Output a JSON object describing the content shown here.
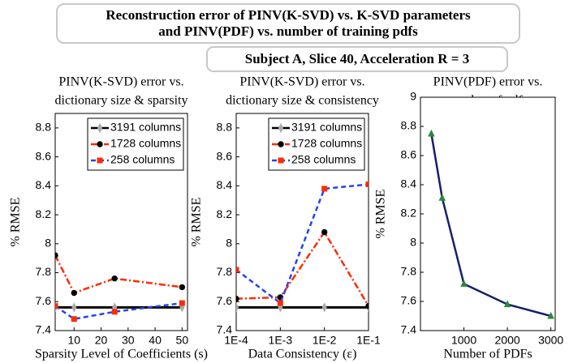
{
  "header": {
    "title": [
      "Reconstruction error of PINV(K-SVD) vs. K-SVD parameters",
      "and PINV(PDF) vs. number of training pdfs"
    ],
    "subtitle": "Subject A, Slice 40, Acceleration R = 3"
  },
  "chart_data": [
    {
      "type": "line",
      "title": [
        "PINV(K-SVD) error vs.",
        "dictionary size & sparsity"
      ],
      "x_label": "Sparsity Level of Coefficients (s)",
      "y_label": "% RMSE",
      "x": [
        3,
        10,
        25,
        50
      ],
      "xlim": [
        3,
        52
      ],
      "xticks": [
        10,
        20,
        30,
        40,
        50
      ],
      "ylim": [
        7.4,
        8.9
      ],
      "yticks": [
        7.4,
        7.6,
        7.8,
        8,
        8.2,
        8.4,
        8.6,
        8.8
      ],
      "legend": "upper right",
      "series": [
        {
          "name": "3191 columns",
          "color": "#000000",
          "linestyle": "solid",
          "marker": "diamond",
          "marker_color": "#aaaaaa",
          "values": [
            7.56,
            7.56,
            7.56,
            7.56
          ]
        },
        {
          "name": "1728 columns",
          "color": "#ff2a00",
          "linestyle": "dashdot",
          "marker": "circle",
          "marker_color": "#000000",
          "values": [
            7.92,
            7.66,
            7.76,
            7.7
          ]
        },
        {
          "name": "258 columns",
          "color": "#2244ee",
          "linestyle": "dashed",
          "marker": "square",
          "marker_color": "#ff2a00",
          "values": [
            7.57,
            7.48,
            7.53,
            7.59
          ]
        }
      ]
    },
    {
      "type": "line",
      "title": [
        "PINV(K-SVD) error vs.",
        "dictionary size & consistency"
      ],
      "x_label": "Data Consistency (ε)",
      "y_label": "% RMSE",
      "log_x": true,
      "x": [
        0.0001,
        0.001,
        0.01,
        0.1
      ],
      "xlim": [
        0.0001,
        0.1
      ],
      "xticks": [
        {
          "value": 0.0001,
          "label": "1E-4"
        },
        {
          "value": 0.001,
          "label": "1E-3"
        },
        {
          "value": 0.01,
          "label": "1E-2"
        },
        {
          "value": 0.1,
          "label": "1E-1"
        }
      ],
      "ylim": [
        7.4,
        8.9
      ],
      "yticks": [
        7.4,
        7.6,
        7.8,
        8,
        8.2,
        8.4,
        8.6,
        8.8
      ],
      "legend": "upper right",
      "series": [
        {
          "name": "3191 columns",
          "color": "#000000",
          "linestyle": "solid",
          "marker": "diamond",
          "marker_color": "#aaaaaa",
          "values": [
            7.56,
            7.56,
            7.56,
            7.56
          ]
        },
        {
          "name": "1728 columns",
          "color": "#ff2a00",
          "linestyle": "dashdot",
          "marker": "circle",
          "marker_color": "#000000",
          "values": [
            7.62,
            7.63,
            8.08,
            7.57
          ]
        },
        {
          "name": "258 columns",
          "color": "#2244ee",
          "linestyle": "dashed",
          "marker": "square",
          "marker_color": "#ff2a00",
          "values": [
            7.82,
            7.59,
            8.38,
            8.41
          ]
        }
      ]
    },
    {
      "type": "line",
      "title": [
        "PINV(PDF) error vs.",
        "number of pdfs"
      ],
      "x_label": "Number of PDFs",
      "y_label": "% RMSE",
      "x": [
        250,
        500,
        1000,
        2000,
        3000
      ],
      "xlim": [
        0,
        3100
      ],
      "xticks": [
        1000,
        2000,
        3000
      ],
      "ylim": [
        7.4,
        9
      ],
      "yticks": [
        7.4,
        7.6,
        7.8,
        8,
        8.2,
        8.4,
        8.6,
        8.8,
        9
      ],
      "series": [
        {
          "color": "#14206a",
          "linestyle": "solid",
          "marker": "triangle",
          "marker_color": "#2a8a3a",
          "values": [
            8.75,
            8.31,
            7.72,
            7.58,
            7.5
          ]
        }
      ]
    }
  ]
}
